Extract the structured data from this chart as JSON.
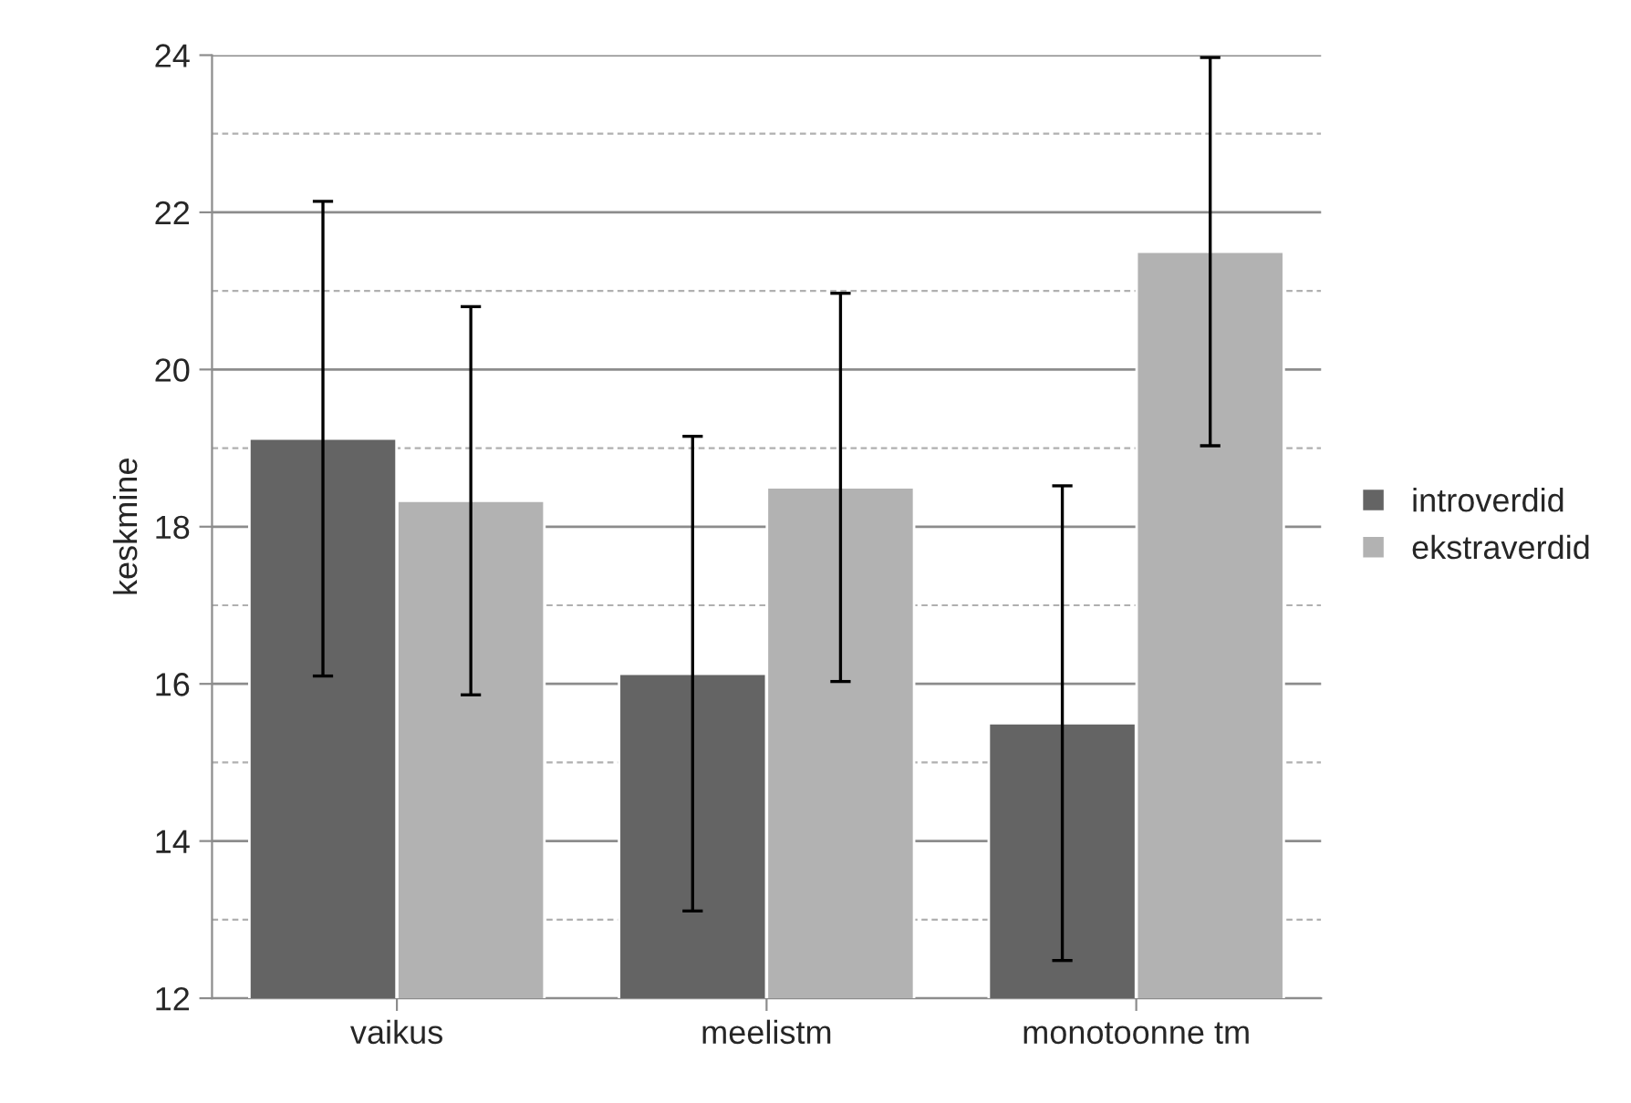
{
  "chart_data": {
    "type": "bar",
    "ylabel": "keskmine",
    "categories": [
      "vaikus",
      "meelistm",
      "monotoonne tm"
    ],
    "series": [
      {
        "name": "introverdid",
        "color": "#646464",
        "values": [
          19.12,
          16.13,
          15.5
        ],
        "errors": [
          3.02,
          3.02,
          3.02
        ]
      },
      {
        "name": "ekstraverdid",
        "color": "#b2b2b2",
        "values": [
          18.33,
          18.5,
          21.5
        ],
        "errors": [
          2.47,
          2.47,
          2.47
        ]
      }
    ],
    "ylim": [
      12,
      24
    ],
    "yticks": [
      12,
      14,
      16,
      18,
      20,
      22,
      24
    ],
    "grid": "y",
    "legend": "right"
  }
}
